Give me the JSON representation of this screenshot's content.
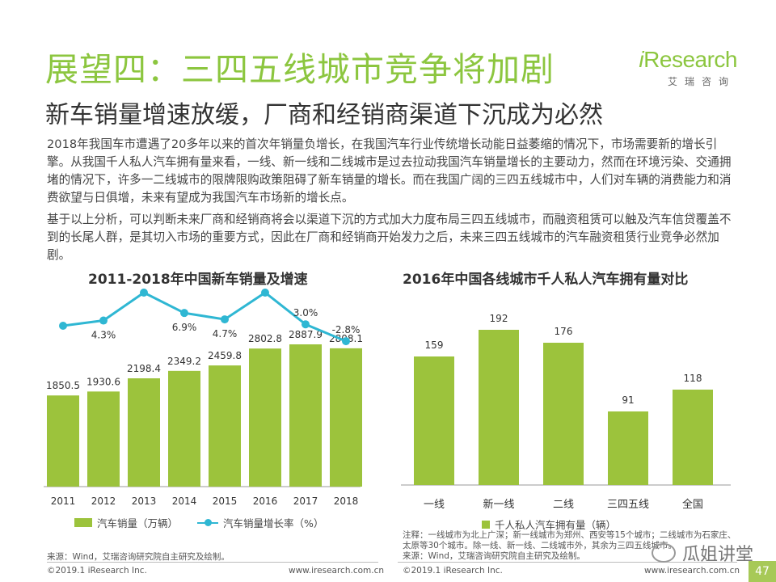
{
  "title": "展望四：三四五线城市竞争将加剧",
  "subtitle": "新车销量增速放缓，厂商和经销商渠道下沉成为必然",
  "logo": {
    "main_i": "i",
    "main_rest": "Research",
    "sub": "艾瑞咨询",
    "color": "#8cc63f"
  },
  "paragraphs": [
    "2018年我国车市遭遇了20多年以来的首次年销量负增长，在我国汽车行业传统增长动能日益萎缩的情况下，市场需要新的增长引擎。从我国千人私人汽车拥有量来看，一线、新一线和二线城市是过去拉动我国汽车销量增长的主要动力，然而在环境污染、交通拥堵的情况下，许多一二线城市的限牌限购政策阻碍了新车销量的增长。而在我国广阔的三四五线城市中，人们对车辆的消费能力和消费欲望与日俱增，未来有望成为我国汽车市场新的增长点。",
    "基于以上分析，可以判断未来厂商和经销商将会以渠道下沉的方式加大力度布局三四五线城市，而融资租赁可以触及汽车信贷覆盖不到的长尾人群，是其切入市场的重要方式，因此在厂商和经销商开始发力之后，未来三四五线城市的汽车融资租赁行业竞争必然加剧。"
  ],
  "chart_data": [
    {
      "type": "bar",
      "title": "2011-2018年中国新车销量及增速",
      "categories": [
        "2011",
        "2012",
        "2013",
        "2014",
        "2015",
        "2016",
        "2017",
        "2018"
      ],
      "series": [
        {
          "name": "汽车销量（万辆）",
          "type": "bar",
          "values": [
            1850.5,
            1930.6,
            2198.4,
            2349.2,
            2459.8,
            2802.8,
            2887.9,
            2808.1
          ],
          "labels": [
            "1850.5",
            "1930.6",
            "2198.4",
            "2349.2",
            "2459.8",
            "2802.8",
            "2887.9",
            "2808.1"
          ]
        },
        {
          "name": "汽车销量增长率（%）",
          "type": "line",
          "values": [
            2.5,
            4.3,
            13.9,
            6.9,
            4.7,
            13.9,
            3.0,
            -2.8
          ],
          "labels": [
            "",
            "4.3%",
            "13.9%",
            "6.9%",
            "4.7%",
            "13.9%",
            "3.0%",
            "-2.8%"
          ]
        }
      ],
      "bar_color": "#9cc33c",
      "line_color": "#2fb7d3",
      "legend_position": "bottom"
    },
    {
      "type": "bar",
      "title": "2016年中国各线城市千人私人汽车拥有量对比",
      "categories": [
        "一线",
        "新一线",
        "二线",
        "三四五线",
        "全国"
      ],
      "series": [
        {
          "name": "千人私人汽车拥有量（辆）",
          "values": [
            159,
            192,
            176,
            91,
            118
          ]
        }
      ],
      "bar_color": "#9cc33c",
      "legend_position": "bottom"
    }
  ],
  "notes": {
    "left_source": "来源：Wind，艾瑞咨询研究院自主研究及绘制。",
    "right_note_1": "注释：一线城市为北上广深；新一线城市为郑州、西安等15个城市；二线城市为石家庄、",
    "right_note_2": "太原等30个城市。除一线、新一线、二线城市外，其余为三四五线城市。",
    "right_source": "来源：Wind，艾瑞咨询研究院自主研究及绘制。"
  },
  "footer": {
    "copyright_left": "©2019.1 iResearch Inc.",
    "url_left": "www.iresearch.com.cn",
    "copyright_right": "©2019.1 iResearch Inc.",
    "url_right": "www.iresearch.com.cn",
    "page": "47"
  },
  "watermark": "瓜姐讲堂"
}
